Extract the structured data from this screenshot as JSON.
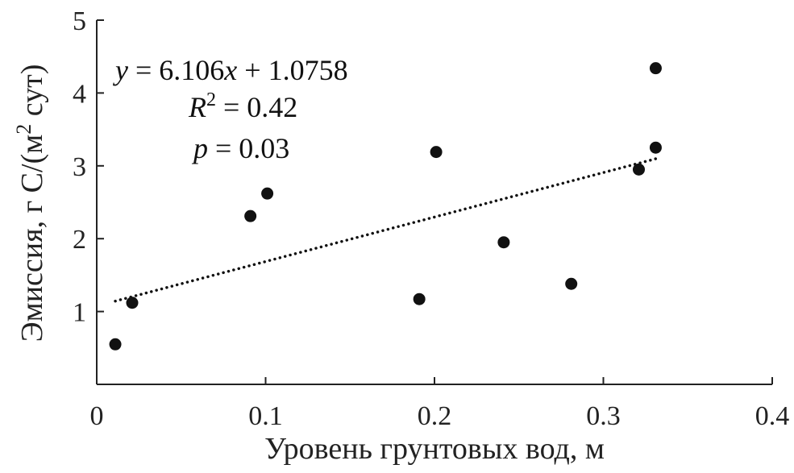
{
  "chart_data": {
    "type": "scatter",
    "title": "",
    "xlabel": "Уровень грунтовых вод, м",
    "ylabel_prefix": "Эмиссия, г С/(м",
    "ylabel_sup": "2",
    "ylabel_suffix": " сут)",
    "xlim": [
      0,
      0.4
    ],
    "ylim": [
      0,
      5
    ],
    "x_ticks": [
      0,
      0.1,
      0.2,
      0.3,
      0.4
    ],
    "x_tick_labels": [
      "0",
      "0.1",
      "0.2",
      "0.3",
      "0.4"
    ],
    "y_ticks": [
      1,
      2,
      3,
      4,
      5
    ],
    "y_tick_labels": [
      "1",
      "2",
      "3",
      "4",
      "5"
    ],
    "grid": false,
    "points": [
      {
        "x": 0.011,
        "y": 0.55
      },
      {
        "x": 0.021,
        "y": 1.12
      },
      {
        "x": 0.091,
        "y": 2.31
      },
      {
        "x": 0.101,
        "y": 2.62
      },
      {
        "x": 0.191,
        "y": 1.17
      },
      {
        "x": 0.201,
        "y": 3.19
      },
      {
        "x": 0.241,
        "y": 1.95
      },
      {
        "x": 0.281,
        "y": 1.38
      },
      {
        "x": 0.321,
        "y": 2.95
      },
      {
        "x": 0.331,
        "y": 3.25
      },
      {
        "x": 0.331,
        "y": 4.34
      }
    ],
    "trendline": {
      "slope": 6.106,
      "intercept": 1.0758,
      "x_range": [
        0.011,
        0.331
      ],
      "style": "dotted"
    },
    "annotations": {
      "eq_y": "y",
      "eq_rest": " = 6.106",
      "eq_x": "x",
      "eq_tail": " + 1.0758",
      "r2_r": "R",
      "r2_sup": "2",
      "r2_rest": " = 0.42",
      "p_p": "p",
      "p_rest": " = 0.03"
    },
    "colors": {
      "points": "#111111",
      "axis": "#222222",
      "trendline": "#111111"
    }
  }
}
